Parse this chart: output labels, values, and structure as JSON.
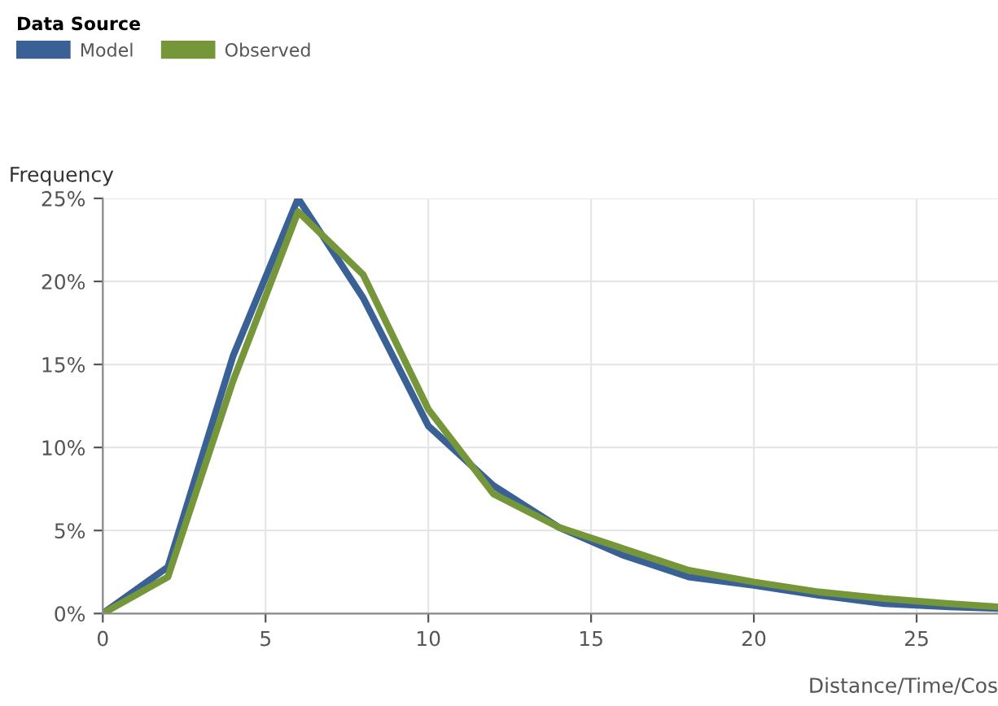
{
  "chart_data": {
    "type": "line",
    "ylabel": "Frequency",
    "xlabel": "Distance/Time/Cos",
    "legend_title": "Data Source",
    "legend": "top left",
    "grid": true,
    "xlim": [
      0,
      27.5
    ],
    "xticks": [
      0,
      5,
      10,
      15,
      20,
      25
    ],
    "ylim": [
      0,
      25
    ],
    "yticks": [
      {
        "value": 0,
        "label": "0%"
      },
      {
        "value": 5,
        "label": "5%"
      },
      {
        "value": 10,
        "label": "10%"
      },
      {
        "value": 15,
        "label": "15%"
      },
      {
        "value": 20,
        "label": "20%"
      },
      {
        "value": 25,
        "label": "25%"
      }
    ],
    "x": [
      0,
      2,
      4,
      6,
      8,
      10,
      12,
      14,
      16,
      18,
      20,
      22,
      24,
      26,
      27.5
    ],
    "series": [
      {
        "name": "Model",
        "color": "#3a6196",
        "values": [
          0,
          2.8,
          15.5,
          25,
          19,
          11.3,
          7.7,
          5.2,
          3.5,
          2.2,
          1.7,
          1.1,
          0.6,
          0.4,
          0.3
        ]
      },
      {
        "name": "Observed",
        "color": "#76963a",
        "values": [
          0,
          2.2,
          14,
          24.2,
          20.4,
          12.3,
          7.2,
          5.2,
          3.9,
          2.6,
          1.9,
          1.3,
          0.9,
          0.6,
          0.4
        ]
      }
    ]
  }
}
